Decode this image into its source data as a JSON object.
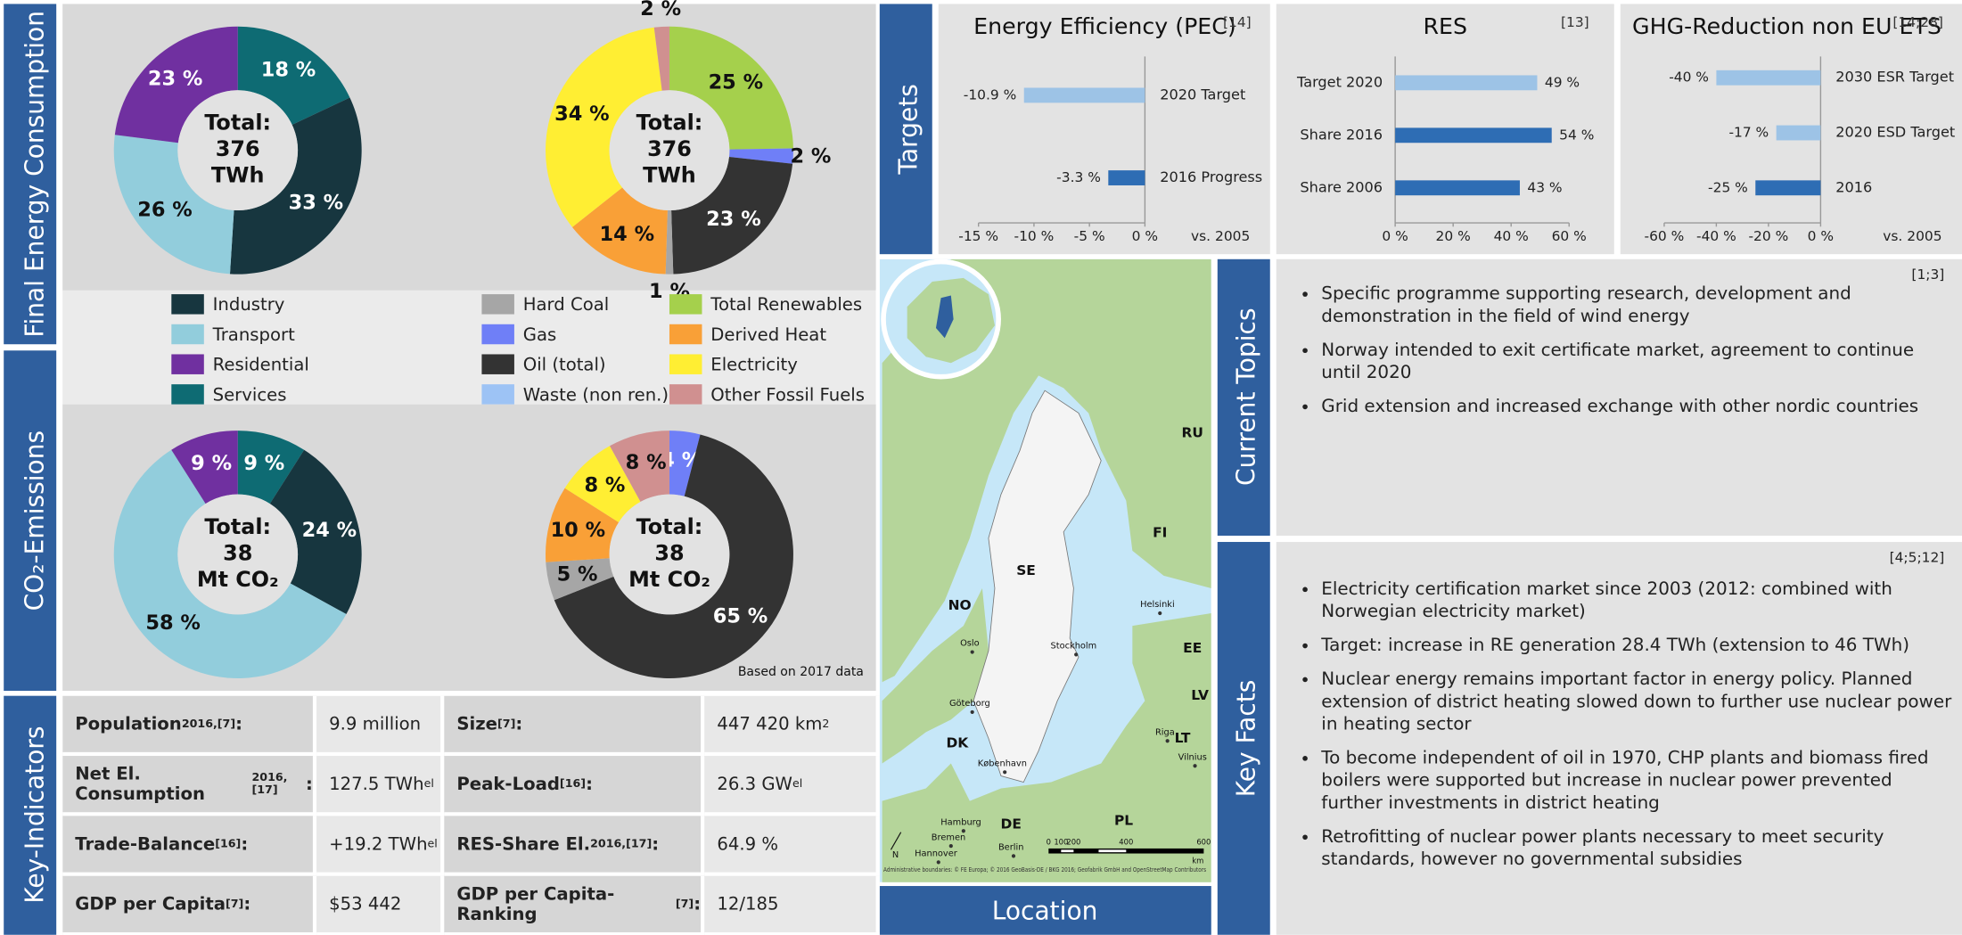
{
  "sections": {
    "final_energy": "Final Energy Consumption",
    "co2": "CO₂-Emissions",
    "key_indicators": "Key-Indicators",
    "targets": "Targets",
    "location": "Location",
    "current_topics": "Current Topics",
    "key_facts": "Key Facts"
  },
  "chart_data": [
    {
      "type": "pie",
      "categories": [
        "Services",
        "Industry",
        "Transport",
        "Residential"
      ],
      "values": [
        18,
        33,
        26,
        23
      ],
      "value_labels": [
        "18 %",
        "33 %",
        "26 %",
        "23 %"
      ],
      "colors": [
        "#0e6b73",
        "#17363f",
        "#92cddc",
        "#7030a0"
      ],
      "center": [
        "Total:",
        "376",
        "TWh"
      ]
    },
    {
      "type": "pie",
      "categories": [
        "Total Renewables",
        "Gas",
        "Oil (total)",
        "Hard Coal",
        "Derived Heat",
        "Electricity",
        "Other Fossil Fuels"
      ],
      "values": [
        25,
        2,
        23,
        1,
        14,
        34,
        2
      ],
      "value_labels": [
        "25 %",
        "2 %",
        "23 %",
        "1 %",
        "14 %",
        "34 %",
        "2 %"
      ],
      "colors": [
        "#a5d04c",
        "#6f7ff7",
        "#333333",
        "#a6a6a6",
        "#f9a037",
        "#ffee33",
        "#d09090"
      ],
      "center": [
        "Total:",
        "376",
        "TWh"
      ]
    },
    {
      "type": "pie",
      "categories": [
        "Services",
        "Industry",
        "Transport",
        "Residential"
      ],
      "values": [
        9,
        24,
        58,
        9
      ],
      "value_labels": [
        "9 %",
        "24 %",
        "58 %",
        "9 %"
      ],
      "colors": [
        "#0e6b73",
        "#17363f",
        "#92cddc",
        "#7030a0"
      ],
      "center": [
        "Total:",
        "38",
        "Mt CO₂"
      ]
    },
    {
      "type": "pie",
      "categories": [
        "Gas",
        "Oil (total)",
        "Hard Coal",
        "Derived Heat",
        "Electricity",
        "Other Fossil Fuels"
      ],
      "values": [
        4,
        65,
        5,
        10,
        8,
        8
      ],
      "value_labels": [
        "4 %",
        "65 %",
        "5 %",
        "10 %",
        "8 %",
        "8 %"
      ],
      "colors": [
        "#6f7ff7",
        "#333333",
        "#a6a6a6",
        "#f9a037",
        "#ffee33",
        "#d09090"
      ],
      "center": [
        "Total:",
        "38",
        "Mt CO₂"
      ]
    },
    {
      "type": "bar",
      "orientation": "horizontal",
      "title": "Energy Efficiency (PEC)",
      "reference": "[14]",
      "categories": [
        "2020 Target",
        "2016 Progress"
      ],
      "values": [
        -10.9,
        -3.3
      ],
      "value_labels": [
        "-10.9 %",
        "-3.3 %"
      ],
      "colors": [
        "#9dc3e6",
        "#2e6db4"
      ],
      "xlim": [
        -15,
        0
      ],
      "xticks": [
        {
          "value": -15,
          "label": "-15 %"
        },
        {
          "value": -10,
          "label": "-10 %"
        },
        {
          "value": -5,
          "label": "-5 %"
        },
        {
          "value": 0,
          "label": "0 %"
        }
      ],
      "note": "vs. 2005"
    },
    {
      "type": "bar",
      "orientation": "horizontal",
      "title": "RES",
      "reference": "[13]",
      "categories": [
        "Target 2020",
        "Share 2016",
        "Share 2006"
      ],
      "values": [
        49,
        54,
        43
      ],
      "value_labels": [
        "49 %",
        "54 %",
        "43 %"
      ],
      "colors": [
        "#9dc3e6",
        "#2e6db4",
        "#2e6db4"
      ],
      "xlim": [
        0,
        60
      ],
      "xticks": [
        {
          "value": 0,
          "label": "0 %"
        },
        {
          "value": 20,
          "label": "20 %"
        },
        {
          "value": 40,
          "label": "40 %"
        },
        {
          "value": 60,
          "label": "60 %"
        }
      ]
    },
    {
      "type": "bar",
      "orientation": "horizontal",
      "title": "GHG-Reduction non EU ETS",
      "reference": "[14;28]",
      "categories": [
        "2030 ESR Target",
        "2020 ESD Target",
        "2016"
      ],
      "values": [
        -40,
        -17,
        -25
      ],
      "value_labels": [
        "-40 %",
        "-17 %",
        "-25 %"
      ],
      "colors": [
        "#9dc3e6",
        "#9dc3e6",
        "#2e6db4"
      ],
      "xlim": [
        -60,
        0
      ],
      "xticks": [
        {
          "value": -60,
          "label": "-60 %"
        },
        {
          "value": -40,
          "label": "-40 %"
        },
        {
          "value": -20,
          "label": "-20 %"
        },
        {
          "value": 0,
          "label": "0 %"
        }
      ],
      "note": "vs. 2005"
    }
  ],
  "legend": {
    "sector": [
      {
        "label": "Industry",
        "color": "#17363f"
      },
      {
        "label": "Transport",
        "color": "#92cddc"
      },
      {
        "label": "Residential",
        "color": "#7030a0"
      },
      {
        "label": "Services",
        "color": "#0e6b73"
      }
    ],
    "carrier": [
      {
        "label": "Hard Coal",
        "color": "#a6a6a6"
      },
      {
        "label": "Gas",
        "color": "#6f7ff7"
      },
      {
        "label": "Oil (total)",
        "color": "#333333"
      },
      {
        "label": "Waste (non ren.)",
        "color": "#9dc3f5"
      },
      {
        "label": "Total Renewables",
        "color": "#a5d04c"
      },
      {
        "label": "Derived Heat",
        "color": "#f9a037"
      },
      {
        "label": "Electricity",
        "color": "#ffee33"
      },
      {
        "label": "Other Fossil Fuels",
        "color": "#d09090"
      }
    ]
  },
  "note": "Based on 2017 data",
  "key_indicators": {
    "rows": [
      [
        {
          "text": "Population",
          "sup": "2016,[7]",
          "end": ":"
        },
        {
          "text": "9.9 million"
        },
        {
          "text": "Size",
          "sup": "[7]",
          "end": ":"
        },
        {
          "text": "447 420 km",
          "sup": "2"
        }
      ],
      [
        {
          "text": "Net El. Consumption",
          "sup": "2016,[17]",
          "end": ":"
        },
        {
          "text": "127.5 TWh",
          "sub": "el"
        },
        {
          "text": "Peak-Load",
          "sup": "[16]",
          "end": ":"
        },
        {
          "text": "26.3 GW",
          "sub": "el"
        }
      ],
      [
        {
          "text": "Trade-Balance",
          "sup": "[16]",
          "end": ":"
        },
        {
          "text": "+19.2 TWh",
          "sub": "el"
        },
        {
          "text": "RES-Share El.",
          "sup": "2016,[17]",
          "end": ":"
        },
        {
          "text": "64.9 %"
        }
      ],
      [
        {
          "text": "GDP per Capita",
          "sup": "[7]",
          "end": ":"
        },
        {
          "text": "$53 442"
        },
        {
          "text": "GDP per Capita-Ranking",
          "sup": "[7]",
          "end": ":"
        },
        {
          "text": "12/185"
        }
      ]
    ]
  },
  "current_topics": {
    "reference": "[1;3]",
    "items": [
      "Specific programme supporting research, development and demonstration in the field of wind energy",
      "Norway intended to exit certificate market, agreement to continue until 2020",
      "Grid extension and increased exchange with other nordic countries"
    ]
  },
  "key_facts": {
    "reference": "[4;5;12]",
    "items": [
      "Electricity certification market since 2003 (2012: combined with Norwegian electricity market)",
      "Target: increase in RE generation 28.4 TWh (extension to 46 TWh)",
      "Nuclear energy remains important factor in energy policy. Planned extension of district heating slowed down to further use nuclear power in heating sector",
      "To become independent of oil in 1970, CHP plants and biomass fired boilers were supported but increase in nuclear power prevented further investments in district heating",
      "Retrofitting of nuclear power plants necessary to meet security standards, however no governmental subsidies"
    ]
  },
  "map": {
    "countries": [
      "SE",
      "NO",
      "FI",
      "RU",
      "EE",
      "LV",
      "LT",
      "DK",
      "DE",
      "PL"
    ],
    "cities": [
      "Oslo",
      "Stockholm",
      "Helsinki",
      "Göteborg",
      "Riga",
      "Vilnius",
      "København",
      "Hamburg",
      "Bremen",
      "Berlin",
      "Hannover"
    ],
    "scale": [
      "0",
      "100",
      "200",
      "400",
      "600"
    ],
    "scale_unit": "km",
    "north": "N",
    "attribution": "Administrative boundaries: © FE Europa; © 2016 GeoBasis-DE / BKG 2016; Geofabrik GmbH and OpenStreetMap Contributors"
  }
}
